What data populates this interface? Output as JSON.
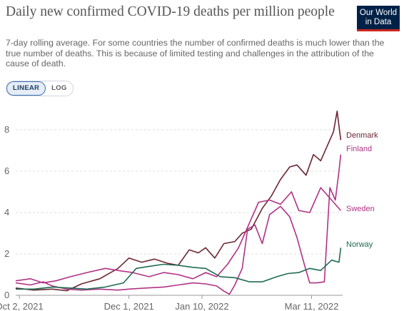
{
  "header": {
    "title": "Daily new confirmed COVID-19 deaths per million people",
    "subtitle": "7-day rolling average. For some countries the number of confirmed deaths is much lower than the true number of deaths. This is because of limited testing and challenges in the attribution of the cause of death.",
    "logo_line1": "Our World",
    "logo_line2": "in Data"
  },
  "controls": {
    "linear_label": "LINEAR",
    "log_label": "LOG",
    "selected": "LINEAR"
  },
  "chart_data": {
    "type": "line",
    "title": "Daily new confirmed COVID-19 deaths per million people",
    "xlabel": "",
    "ylabel": "",
    "ylim": [
      0,
      9.1
    ],
    "y_ticks": [
      0,
      2,
      4,
      6,
      8
    ],
    "x_domain": [
      "2021-09-30",
      "2022-03-28"
    ],
    "x_ticks": [
      {
        "date": "2021-10-02",
        "label": "Oct 2, 2021"
      },
      {
        "date": "2021-12-01",
        "label": "Dec 1, 2021"
      },
      {
        "date": "2022-01-10",
        "label": "Jan 10, 2022"
      },
      {
        "date": "2022-03-11",
        "label": "Mar 11, 2022"
      }
    ],
    "grid": "horizontal dashed",
    "legend": "inline labels at line ends",
    "series": [
      {
        "name": "Denmark",
        "color": "#6d2633",
        "points": [
          [
            "2021-09-30",
            0.35
          ],
          [
            "2021-10-10",
            0.25
          ],
          [
            "2021-10-20",
            0.3
          ],
          [
            "2021-10-28",
            0.22
          ],
          [
            "2021-11-05",
            0.55
          ],
          [
            "2021-11-15",
            0.8
          ],
          [
            "2021-11-25",
            1.3
          ],
          [
            "2021-12-01",
            1.8
          ],
          [
            "2021-12-08",
            1.6
          ],
          [
            "2021-12-15",
            1.75
          ],
          [
            "2021-12-22",
            1.55
          ],
          [
            "2021-12-28",
            1.45
          ],
          [
            "2022-01-03",
            2.2
          ],
          [
            "2022-01-08",
            2.05
          ],
          [
            "2022-01-12",
            2.3
          ],
          [
            "2022-01-17",
            1.8
          ],
          [
            "2022-01-22",
            2.5
          ],
          [
            "2022-01-28",
            2.6
          ],
          [
            "2022-02-01",
            3.0
          ],
          [
            "2022-02-06",
            3.2
          ],
          [
            "2022-02-12",
            4.2
          ],
          [
            "2022-02-17",
            4.8
          ],
          [
            "2022-02-22",
            5.6
          ],
          [
            "2022-02-27",
            6.2
          ],
          [
            "2022-03-03",
            6.3
          ],
          [
            "2022-03-08",
            5.8
          ],
          [
            "2022-03-12",
            6.8
          ],
          [
            "2022-03-16",
            6.5
          ],
          [
            "2022-03-20",
            7.3
          ],
          [
            "2022-03-23",
            7.9
          ],
          [
            "2022-03-25",
            8.9
          ],
          [
            "2022-03-27",
            7.5
          ]
        ]
      },
      {
        "name": "Finland",
        "color": "#b13285",
        "points": [
          [
            "2021-09-30",
            0.6
          ],
          [
            "2021-10-08",
            0.5
          ],
          [
            "2021-10-15",
            0.65
          ],
          [
            "2021-10-20",
            0.45
          ],
          [
            "2021-10-28",
            0.3
          ],
          [
            "2021-11-05",
            0.25
          ],
          [
            "2021-11-15",
            0.3
          ],
          [
            "2021-11-25",
            0.25
          ],
          [
            "2021-12-01",
            0.3
          ],
          [
            "2021-12-10",
            0.35
          ],
          [
            "2021-12-20",
            0.4
          ],
          [
            "2021-12-28",
            0.5
          ],
          [
            "2022-01-05",
            0.6
          ],
          [
            "2022-01-12",
            0.55
          ],
          [
            "2022-01-18",
            0.45
          ],
          [
            "2022-01-22",
            0.2
          ],
          [
            "2022-01-25",
            0.05
          ],
          [
            "2022-01-28",
            0.5
          ],
          [
            "2022-02-01",
            1.3
          ],
          [
            "2022-02-04",
            3.2
          ],
          [
            "2022-02-08",
            3.4
          ],
          [
            "2022-02-12",
            2.5
          ],
          [
            "2022-02-16",
            3.9
          ],
          [
            "2022-02-22",
            4.3
          ],
          [
            "2022-02-27",
            3.8
          ],
          [
            "2022-03-03",
            2.8
          ],
          [
            "2022-03-07",
            1.5
          ],
          [
            "2022-03-10",
            0.6
          ],
          [
            "2022-03-14",
            0.6
          ],
          [
            "2022-03-18",
            0.65
          ],
          [
            "2022-03-21",
            5.2
          ],
          [
            "2022-03-24",
            4.6
          ],
          [
            "2022-03-26",
            6.0
          ],
          [
            "2022-03-27",
            6.8
          ]
        ]
      },
      {
        "name": "Sweden",
        "color": "#b13285",
        "points": [
          [
            "2021-09-30",
            0.7
          ],
          [
            "2021-10-08",
            0.8
          ],
          [
            "2021-10-15",
            0.6
          ],
          [
            "2021-10-22",
            0.7
          ],
          [
            "2021-10-30",
            0.9
          ],
          [
            "2021-11-08",
            1.1
          ],
          [
            "2021-11-18",
            1.3
          ],
          [
            "2021-11-25",
            1.2
          ],
          [
            "2021-12-03",
            1.1
          ],
          [
            "2021-12-12",
            0.9
          ],
          [
            "2021-12-20",
            1.1
          ],
          [
            "2021-12-28",
            1.0
          ],
          [
            "2022-01-05",
            0.8
          ],
          [
            "2022-01-12",
            1.1
          ],
          [
            "2022-01-18",
            0.9
          ],
          [
            "2022-01-24",
            1.5
          ],
          [
            "2022-01-30",
            2.3
          ],
          [
            "2022-02-05",
            3.5
          ],
          [
            "2022-02-10",
            4.5
          ],
          [
            "2022-02-16",
            4.6
          ],
          [
            "2022-02-22",
            4.4
          ],
          [
            "2022-02-28",
            5.0
          ],
          [
            "2022-03-04",
            4.1
          ],
          [
            "2022-03-10",
            4.0
          ],
          [
            "2022-03-16",
            5.2
          ],
          [
            "2022-03-22",
            4.6
          ],
          [
            "2022-03-27",
            4.1
          ]
        ]
      },
      {
        "name": "Norway",
        "color": "#1f6b52",
        "points": [
          [
            "2021-09-30",
            0.3
          ],
          [
            "2021-10-10",
            0.3
          ],
          [
            "2021-10-20",
            0.4
          ],
          [
            "2021-10-30",
            0.35
          ],
          [
            "2021-11-08",
            0.3
          ],
          [
            "2021-11-18",
            0.4
          ],
          [
            "2021-11-28",
            0.6
          ],
          [
            "2021-12-05",
            1.3
          ],
          [
            "2021-12-12",
            1.4
          ],
          [
            "2021-12-20",
            1.5
          ],
          [
            "2021-12-28",
            1.45
          ],
          [
            "2022-01-05",
            1.35
          ],
          [
            "2022-01-12",
            1.3
          ],
          [
            "2022-01-20",
            0.9
          ],
          [
            "2022-01-28",
            0.85
          ],
          [
            "2022-02-05",
            0.65
          ],
          [
            "2022-02-12",
            0.65
          ],
          [
            "2022-02-20",
            0.9
          ],
          [
            "2022-02-26",
            1.05
          ],
          [
            "2022-03-04",
            1.1
          ],
          [
            "2022-03-10",
            1.3
          ],
          [
            "2022-03-16",
            1.2
          ],
          [
            "2022-03-22",
            1.7
          ],
          [
            "2022-03-26",
            1.6
          ],
          [
            "2022-03-27",
            2.3
          ]
        ]
      }
    ]
  }
}
